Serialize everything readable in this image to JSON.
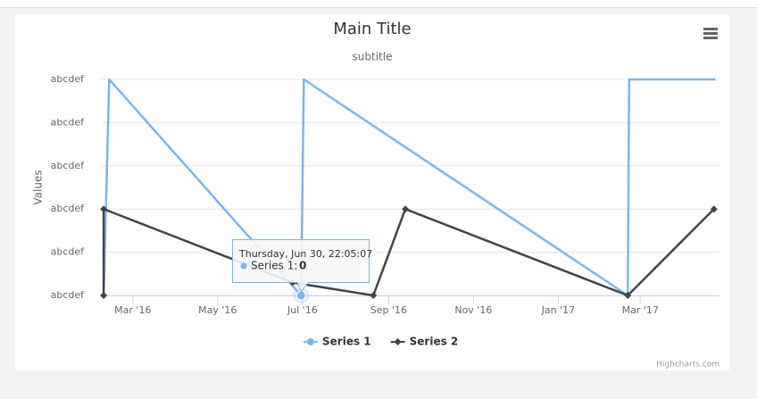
{
  "chart_data": {
    "type": "line",
    "title": "Main Title",
    "subtitle": "subtitle",
    "y_axis_title": "Values",
    "credits": "Highcharts.com",
    "xlim": [
      "2016-02-07",
      "2017-04-27"
    ],
    "xticks": [
      {
        "value": "2016-03-01",
        "label": "Mar '16"
      },
      {
        "value": "2016-05-01",
        "label": "May '16"
      },
      {
        "value": "2016-07-01",
        "label": "Jul '16"
      },
      {
        "value": "2016-09-01",
        "label": "Sep '16"
      },
      {
        "value": "2016-11-01",
        "label": "Nov '16"
      },
      {
        "value": "2017-01-01",
        "label": "Jan '17"
      },
      {
        "value": "2017-03-01",
        "label": "Mar '17"
      }
    ],
    "ylim": [
      0,
      5
    ],
    "yticks": [
      {
        "value": 0,
        "label": "abcdef"
      },
      {
        "value": 1,
        "label": "abcdef"
      },
      {
        "value": 2,
        "label": "abcdef"
      },
      {
        "value": 3,
        "label": "abcdef"
      },
      {
        "value": 4,
        "label": "abcdef"
      },
      {
        "value": 5,
        "label": "abcdef"
      }
    ],
    "grid": true,
    "legend": "bottom",
    "series": [
      {
        "name": "Series 1",
        "color": "#7cb5ec",
        "marker": "circle",
        "x": [
          "2016-02-09",
          "2016-02-13",
          "2016-06-30",
          "2016-07-02",
          "2017-02-20",
          "2017-02-21",
          "2017-04-24"
        ],
        "values": [
          0,
          5,
          0,
          5,
          0,
          5,
          5
        ]
      },
      {
        "name": "Series 2",
        "color": "#434348",
        "marker": "diamond",
        "x": [
          "2016-02-09",
          "2016-02-09",
          "2016-06-24",
          "2016-08-21",
          "2016-09-13",
          "2017-02-20",
          "2017-04-23"
        ],
        "values": [
          0,
          2,
          0.3,
          0,
          2,
          0,
          2
        ]
      }
    ],
    "tooltip": {
      "date": "Thursday, Jun 30, 22:05:07",
      "label": "Series 1:",
      "value": 0
    }
  }
}
